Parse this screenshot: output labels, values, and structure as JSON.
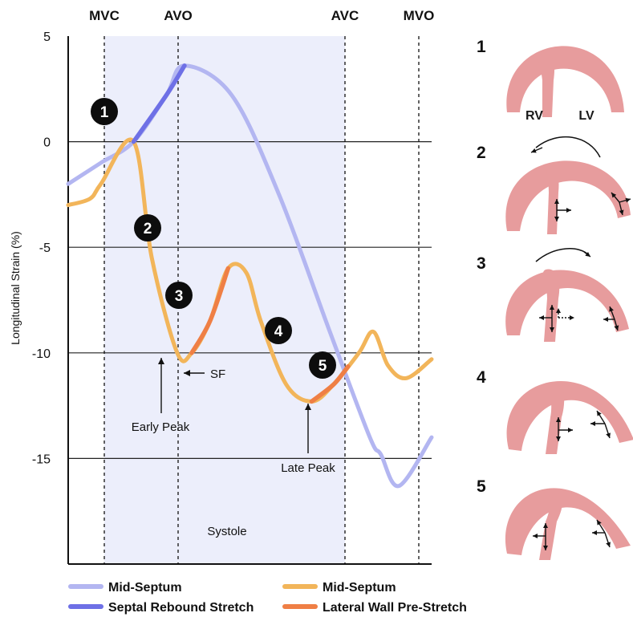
{
  "chart_data": {
    "type": "line",
    "ylabel": "Longitudinal Strain (%)",
    "xlabel": "",
    "ylim": [
      -20,
      5
    ],
    "y_ticks": [
      5,
      0,
      -5,
      -10,
      -15
    ],
    "grid": "horizontal at 0, -5, -10, -15",
    "time_markers": [
      "MVC",
      "AVO",
      "AVC",
      "MVO"
    ],
    "shaded_period": {
      "label": "Systole",
      "from": "MVC",
      "to": "AVC"
    },
    "series": [
      {
        "name": "Mid-Septum",
        "color": "#b3b6f1",
        "x": [
          0.0,
          0.09,
          0.18,
          0.27,
          0.32,
          0.45,
          0.58,
          0.72,
          0.83,
          0.86,
          0.91,
          1.0
        ],
        "values": [
          -2.0,
          -1.0,
          0.0,
          2.2,
          3.6,
          2.2,
          -2.5,
          -9.0,
          -14.0,
          -14.8,
          -16.3,
          -14.0
        ]
      },
      {
        "name": "Mid-Septum",
        "color": "#f2b55a",
        "x": [
          0.0,
          0.06,
          0.09,
          0.18,
          0.23,
          0.3,
          0.34,
          0.39,
          0.44,
          0.49,
          0.53,
          0.6,
          0.67,
          0.73,
          0.8,
          0.84,
          0.88,
          0.93,
          1.0
        ],
        "values": [
          -3.0,
          -2.7,
          -2.0,
          0.0,
          -5.5,
          -10.0,
          -10.0,
          -8.5,
          -6.0,
          -6.2,
          -8.5,
          -11.5,
          -12.3,
          -11.5,
          -10.0,
          -9.0,
          -10.6,
          -11.2,
          -10.3
        ]
      }
    ],
    "highlights": [
      {
        "name": "Septal Rebound Stretch",
        "color": "#6e70e6",
        "x_from": 0.18,
        "x_to": 0.32
      },
      {
        "name": "Lateral Wall Pre-Stretch",
        "color": "#ef7f45",
        "x_from": 0.34,
        "x_to": 0.44
      },
      {
        "name": "Lateral Wall Pre-Stretch",
        "color": "#ef7f45",
        "x_from": 0.67,
        "x_to": 0.77
      }
    ],
    "numbered_markers": [
      "1",
      "2",
      "3",
      "4",
      "5"
    ],
    "annotations": [
      "Early Peak",
      "SF",
      "Late Peak",
      "Systole"
    ]
  },
  "legend": [
    {
      "label": "Mid-Septum",
      "color": "#b3b6f1"
    },
    {
      "label": "Mid-Septum",
      "color": "#f2b55a"
    },
    {
      "label": "Septal Rebound Stretch",
      "color": "#6e70e6"
    },
    {
      "label": "Lateral Wall Pre-Stretch",
      "color": "#ef7f45"
    }
  ],
  "panels": [
    {
      "number": "1",
      "labels": [
        "RV",
        "LV"
      ]
    },
    {
      "number": "2"
    },
    {
      "number": "3"
    },
    {
      "number": "4"
    },
    {
      "number": "5"
    }
  ],
  "colors": {
    "systole_shade": "#eceefb",
    "heart": "#e79c9d",
    "grid": "#222222"
  }
}
